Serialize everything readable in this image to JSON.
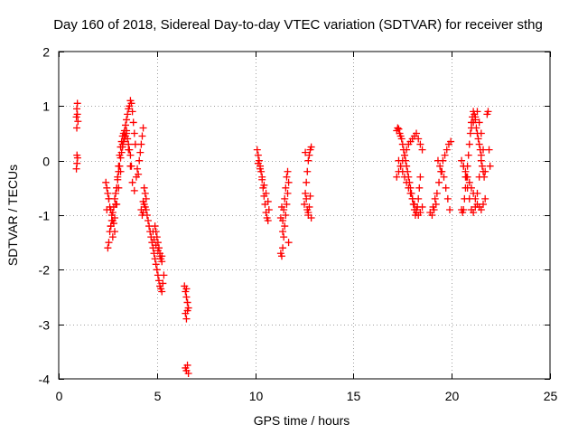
{
  "chart_data": {
    "type": "scatter",
    "title": "Day 160 of 2018, Sidereal Day-to-day VTEC variation (SDTVAR) for receiver sthg",
    "xlabel": "GPS time / hours",
    "ylabel": "SDTVAR / TECUs",
    "xlim": [
      0,
      25
    ],
    "ylim": [
      -4,
      2
    ],
    "xticks": [
      0,
      5,
      10,
      15,
      20,
      25
    ],
    "xtick_labels": [
      "0",
      "5",
      "10",
      "15",
      "20",
      "25"
    ],
    "yticks": [
      -4,
      -3,
      -2,
      -1,
      0,
      1,
      2
    ],
    "ytick_labels": [
      "-4",
      "-3",
      "-2",
      "-1",
      "0",
      "1",
      "2"
    ],
    "grid": true,
    "marker": "+",
    "color": "#ff0000",
    "series": [
      {
        "name": "sdtvar",
        "x": [
          0.9,
          0.92,
          0.95,
          0.98,
          0.9,
          0.93,
          0.96,
          0.92,
          0.95,
          0.93,
          2.4,
          2.45,
          2.5,
          2.55,
          2.6,
          2.65,
          2.7,
          2.75,
          2.8,
          2.85,
          2.9,
          2.95,
          3.0,
          3.05,
          3.1,
          3.15,
          3.2,
          3.25,
          3.3,
          3.35,
          3.4,
          3.45,
          3.5,
          3.55,
          3.6,
          3.65,
          3.7,
          3.75,
          3.8,
          3.85,
          3.9,
          2.5,
          2.55,
          2.6,
          2.65,
          2.7,
          2.75,
          2.8,
          2.85,
          2.9,
          2.95,
          3.0,
          3.05,
          3.1,
          3.15,
          3.2,
          3.25,
          3.3,
          3.35,
          3.4,
          3.45,
          3.5,
          3.55,
          3.6,
          3.65,
          3.7,
          2.45,
          2.55,
          2.65,
          2.75,
          2.85,
          2.95,
          3.05,
          3.15,
          3.25,
          3.35,
          3.45,
          3.55,
          3.65,
          3.75,
          3.85,
          3.95,
          4.0,
          4.05,
          4.1,
          4.15,
          4.2,
          4.25,
          4.3,
          4.2,
          4.25,
          4.3,
          4.35,
          4.4,
          4.45,
          4.3,
          4.35,
          4.4,
          4.45,
          4.5,
          4.55,
          4.6,
          4.65,
          4.7,
          4.75,
          4.8,
          4.85,
          4.9,
          4.95,
          5.0,
          5.05,
          5.1,
          5.15,
          5.2,
          5.25,
          5.3,
          5.35,
          4.9,
          4.95,
          5.0,
          5.05,
          5.1,
          5.15,
          5.2,
          5.25,
          4.8,
          4.85,
          4.95,
          5.05,
          5.15,
          5.25,
          6.4,
          6.45,
          6.5,
          6.55,
          6.6,
          6.45,
          6.5,
          6.55,
          6.45,
          6.5,
          6.55,
          6.6,
          6.5,
          6.55,
          10.1,
          10.15,
          10.2,
          10.25,
          10.3,
          10.35,
          10.4,
          10.45,
          10.5,
          10.55,
          10.6,
          10.65,
          10.7,
          10.15,
          10.25,
          10.35,
          10.45,
          10.55,
          10.65,
          11.3,
          11.35,
          11.4,
          11.45,
          11.5,
          11.55,
          11.6,
          11.65,
          11.7,
          11.4,
          11.45,
          11.5,
          11.55,
          11.6,
          11.65,
          11.7,
          11.3,
          11.35,
          11.4,
          12.5,
          12.55,
          12.6,
          12.65,
          12.7,
          12.75,
          12.8,
          12.85,
          12.6,
          12.65,
          12.7,
          12.75,
          12.8,
          12.55,
          12.7,
          12.85,
          17.2,
          17.25,
          17.3,
          17.35,
          17.4,
          17.45,
          17.5,
          17.55,
          17.6,
          17.65,
          17.7,
          17.75,
          17.8,
          17.85,
          17.9,
          17.95,
          18.0,
          18.05,
          18.1,
          18.15,
          18.2,
          18.25,
          18.3,
          18.35,
          18.4,
          17.2,
          17.3,
          17.4,
          17.5,
          17.6,
          17.7,
          17.8,
          17.9,
          18.0,
          18.1,
          18.2,
          18.3,
          18.4,
          18.5,
          17.3,
          17.4,
          17.5,
          17.6,
          17.7,
          17.8,
          17.9,
          18.0,
          18.1,
          18.2,
          18.3,
          18.4,
          18.5,
          18.9,
          19.0,
          19.1,
          19.2,
          19.3,
          19.4,
          19.5,
          19.6,
          19.7,
          19.8,
          19.9,
          19.05,
          19.15,
          19.25,
          19.35,
          19.45,
          19.55,
          19.65,
          19.75,
          19.85,
          19.95,
          20.5,
          20.55,
          20.6,
          20.65,
          20.7,
          20.75,
          20.8,
          20.85,
          20.9,
          20.95,
          21.0,
          21.05,
          21.1,
          21.15,
          21.2,
          21.25,
          21.3,
          21.35,
          21.4,
          21.45,
          21.5,
          21.55,
          21.6,
          21.65,
          21.7,
          20.5,
          20.6,
          20.7,
          20.8,
          20.9,
          21.0,
          21.1,
          21.2,
          21.3,
          21.4,
          21.5,
          21.6,
          21.7,
          20.6,
          20.7,
          20.8,
          20.9,
          21.0,
          21.1,
          21.2,
          21.3,
          21.4,
          21.5,
          21.6,
          21.0,
          21.1,
          21.2,
          21.3,
          21.4,
          21.5,
          21.8,
          21.85,
          21.9,
          21.95
        ],
        "y": [
          0.8,
          0.95,
          1.05,
          0.72,
          -0.15,
          -0.05,
          0.05,
          0.6,
          0.85,
          0.1,
          -0.4,
          -0.5,
          -0.6,
          -0.7,
          -0.85,
          -0.9,
          -1.0,
          -1.1,
          -1.15,
          -1.05,
          -0.8,
          -0.5,
          -0.3,
          -0.1,
          0.1,
          0.25,
          0.35,
          0.45,
          0.5,
          0.55,
          0.65,
          0.75,
          0.85,
          0.95,
          1.0,
          1.1,
          1.05,
          0.9,
          0.7,
          0.5,
          0.3,
          -1.6,
          -1.5,
          -1.3,
          -1.2,
          -1.1,
          -0.95,
          -0.85,
          -0.7,
          -0.6,
          -0.5,
          -0.35,
          -0.2,
          -0.1,
          0.05,
          0.15,
          0.25,
          0.35,
          0.4,
          0.45,
          0.5,
          0.4,
          0.3,
          0.2,
          0.1,
          -0.1,
          -0.9,
          -0.7,
          -1.2,
          -1.4,
          -1.3,
          -0.8,
          -0.5,
          -0.2,
          0.3,
          0.45,
          0.55,
          0.2,
          -0.1,
          -0.4,
          -0.55,
          -0.3,
          -0.15,
          -0.25,
          0.0,
          0.15,
          0.3,
          0.45,
          0.6,
          -0.9,
          -1.0,
          -0.95,
          -0.5,
          -0.6,
          -0.7,
          -0.75,
          -0.8,
          -0.85,
          -0.9,
          -1.0,
          -1.1,
          -1.2,
          -1.3,
          -1.4,
          -1.5,
          -1.6,
          -1.7,
          -1.8,
          -1.9,
          -2.0,
          -2.1,
          -2.2,
          -2.3,
          -2.35,
          -2.4,
          -2.25,
          -2.1,
          -1.2,
          -1.3,
          -1.4,
          -1.5,
          -1.6,
          -1.7,
          -1.8,
          -1.75,
          -1.3,
          -1.45,
          -1.55,
          -1.65,
          -1.75,
          -1.85,
          -2.3,
          -2.4,
          -2.5,
          -2.6,
          -2.7,
          -2.8,
          -2.9,
          -2.75,
          -3.8,
          -3.85,
          -3.75,
          -3.9,
          -2.35,
          -2.6,
          0.2,
          0.1,
          0.0,
          -0.1,
          -0.2,
          -0.35,
          -0.5,
          -0.65,
          -0.8,
          -0.95,
          -1.05,
          -1.1,
          -0.9,
          -0.05,
          -0.15,
          -0.3,
          -0.45,
          -0.6,
          -0.75,
          -1.7,
          -1.75,
          -1.6,
          -1.4,
          -1.2,
          -1.0,
          -0.8,
          -0.6,
          -0.4,
          -1.1,
          -0.9,
          -0.7,
          -0.5,
          -0.3,
          -0.2,
          -1.5,
          -1.05,
          -0.85,
          -1.3,
          -0.8,
          -0.6,
          -0.4,
          -0.2,
          0.0,
          0.1,
          0.2,
          0.25,
          -0.7,
          -0.9,
          -1.0,
          -0.85,
          -0.65,
          0.15,
          -0.95,
          -1.05,
          0.55,
          0.6,
          0.58,
          0.5,
          0.45,
          0.4,
          0.3,
          0.2,
          0.1,
          0.0,
          -0.1,
          -0.2,
          -0.3,
          -0.4,
          -0.5,
          -0.6,
          -0.7,
          -0.8,
          -0.9,
          -1.0,
          -0.95,
          -0.85,
          -0.7,
          -0.5,
          -0.3,
          -0.3,
          -0.2,
          -0.1,
          0.0,
          0.1,
          0.2,
          0.3,
          0.35,
          0.4,
          0.45,
          0.5,
          0.4,
          0.3,
          0.2,
          0.0,
          -0.1,
          -0.2,
          -0.3,
          -0.4,
          -0.5,
          -0.6,
          -0.7,
          -0.8,
          -0.9,
          -1.0,
          -0.95,
          -0.85,
          -0.95,
          -1.0,
          -0.9,
          -0.8,
          0.0,
          -0.1,
          -0.2,
          -0.3,
          -0.5,
          -0.7,
          -0.9,
          -0.85,
          -0.7,
          -0.6,
          -0.4,
          -0.2,
          0.0,
          0.1,
          0.2,
          0.3,
          0.35,
          -0.9,
          -0.95,
          -0.9,
          -0.7,
          -0.5,
          -0.3,
          -0.1,
          0.1,
          0.3,
          0.5,
          0.7,
          0.8,
          0.9,
          0.85,
          0.75,
          0.6,
          0.5,
          0.4,
          0.3,
          0.2,
          0.1,
          -0.1,
          -0.2,
          -0.3,
          -0.2,
          0.0,
          -0.1,
          -0.2,
          -0.3,
          -0.4,
          -0.5,
          -0.6,
          -0.7,
          -0.8,
          -0.85,
          -0.9,
          -0.8,
          -0.7,
          -0.1,
          -0.3,
          -0.5,
          -0.7,
          -0.9,
          -0.95,
          -0.85,
          -0.6,
          -0.3,
          0.0,
          0.2,
          0.6,
          0.7,
          0.8,
          0.9,
          0.7,
          0.5,
          0.85,
          0.9,
          0.2,
          -0.1
        ]
      }
    ]
  }
}
